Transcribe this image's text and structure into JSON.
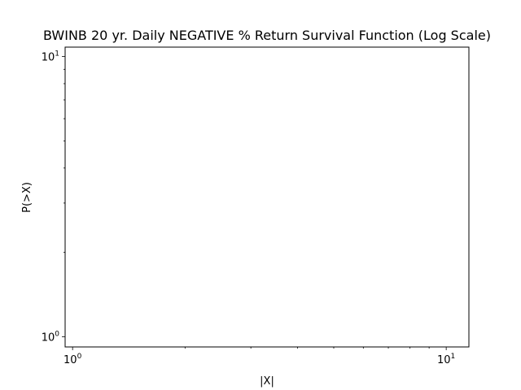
{
  "chart_data": {
    "type": "line",
    "title": "BWINB 20 yr. Daily NEGATIVE % Return Survival Function (Log Scale)",
    "xlabel": "|X|",
    "ylabel": "P(>X)",
    "xscale": "log",
    "yscale": "log",
    "xlim": [
      0.955,
      11.5
    ],
    "ylim": [
      0.92,
      10.8
    ],
    "x_major_ticks": [
      1,
      10
    ],
    "x_major_tick_labels": [
      "10",
      "10"
    ],
    "x_major_tick_exponents": [
      "0",
      "1"
    ],
    "y_major_ticks": [
      1,
      10
    ],
    "y_major_tick_labels": [
      "10",
      "10"
    ],
    "y_major_tick_exponents": [
      "0",
      "1"
    ],
    "x_minor_ticks": [
      2,
      3,
      4,
      5,
      6,
      7,
      8,
      9
    ],
    "y_minor_ticks": [
      2,
      3,
      4,
      5,
      6,
      7,
      8,
      9
    ],
    "grid": false,
    "legend": "none",
    "series": []
  }
}
